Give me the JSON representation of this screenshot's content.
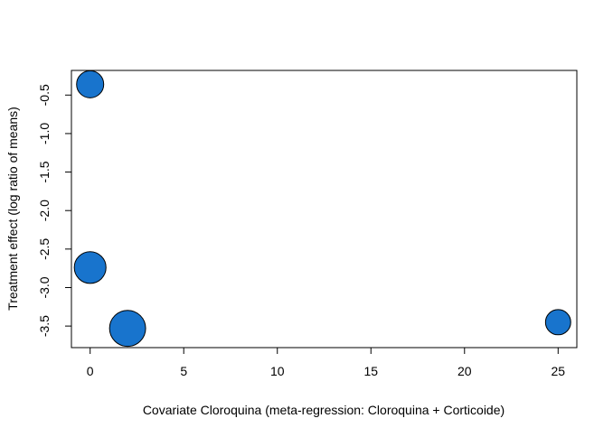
{
  "chart_data": {
    "type": "scatter",
    "title": "",
    "xlabel": "Covariate Cloroquina (meta-regression: Cloroquina + Corticoide)",
    "ylabel": "Treatment effect (log ratio of means)",
    "xlim": [
      -1,
      26
    ],
    "ylim": [
      -3.78,
      -0.18
    ],
    "xticks": [
      0,
      5,
      10,
      15,
      20,
      25
    ],
    "yticks": [
      -0.5,
      -1.0,
      -1.5,
      -2.0,
      -2.5,
      -3.0,
      -3.5
    ],
    "xtick_labels": [
      "0",
      "5",
      "10",
      "15",
      "20",
      "25"
    ],
    "ytick_labels": [
      "-0.5",
      "-1.0",
      "-1.5",
      "-2.0",
      "-2.5",
      "-3.0",
      "-3.5"
    ],
    "grid": false,
    "point_color": "#1874CD",
    "points": [
      {
        "x": 0,
        "y": -0.36,
        "size": 1.0
      },
      {
        "x": 0,
        "y": -2.74,
        "size": 1.17
      },
      {
        "x": 2,
        "y": -3.53,
        "size": 1.33
      },
      {
        "x": 25,
        "y": -3.45,
        "size": 0.93
      }
    ]
  }
}
